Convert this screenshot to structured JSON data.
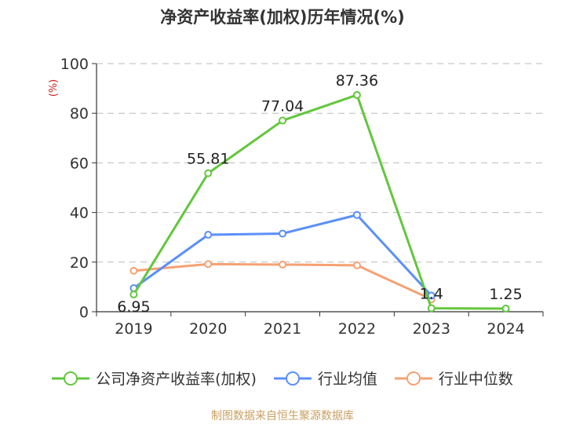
{
  "chart_data": {
    "type": "line",
    "title": "净资产收益率(加权)历年情况(%)",
    "ylabel": "(%)",
    "categories": [
      "2019",
      "2020",
      "2021",
      "2022",
      "2023",
      "2024"
    ],
    "ylim": [
      0,
      100
    ],
    "yticks": [
      0,
      20,
      40,
      60,
      80,
      100
    ],
    "grid": true,
    "legend_position": "bottom",
    "series": [
      {
        "name": "公司净资产收益率(加权)",
        "color": "#62c73c",
        "values": [
          6.95,
          55.81,
          77.04,
          87.36,
          1.4,
          1.25
        ],
        "labels": [
          "6.95",
          "55.81",
          "77.04",
          "87.36",
          "1.4",
          "1.25"
        ]
      },
      {
        "name": "行业均值",
        "color": "#5b8ff9",
        "values": [
          9.5,
          31.0,
          31.5,
          39.0,
          6.5,
          null
        ]
      },
      {
        "name": "行业中位数",
        "color": "#f6a173",
        "values": [
          16.5,
          19.2,
          19.0,
          18.7,
          5.0,
          null
        ]
      }
    ]
  },
  "source": "制图数据来自恒生聚源数据库"
}
